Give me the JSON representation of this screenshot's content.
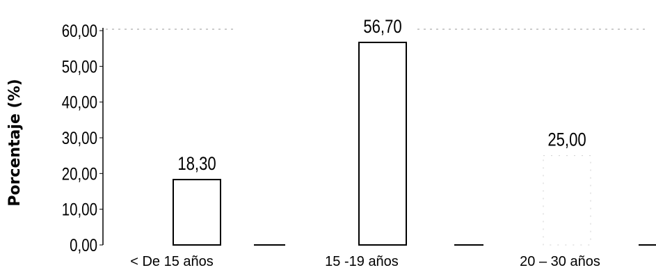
{
  "chart_data": {
    "type": "bar",
    "ylabel": "Porcentaje (%)",
    "xlabel": "",
    "ylim": [
      0,
      60
    ],
    "y_ticks": [
      "0,00",
      "10,00",
      "20,00",
      "30,00",
      "40,00",
      "50,00",
      "60,00"
    ],
    "categories": [
      "< De 15 años",
      "15 -19 años",
      "20 – 30 años"
    ],
    "values": [
      18.3,
      56.7,
      25.0
    ],
    "value_labels": [
      "18,30",
      "56,70",
      "25,00"
    ],
    "bar_fill": "#ffffff",
    "bar_stroke": "#000000",
    "grid": false
  }
}
